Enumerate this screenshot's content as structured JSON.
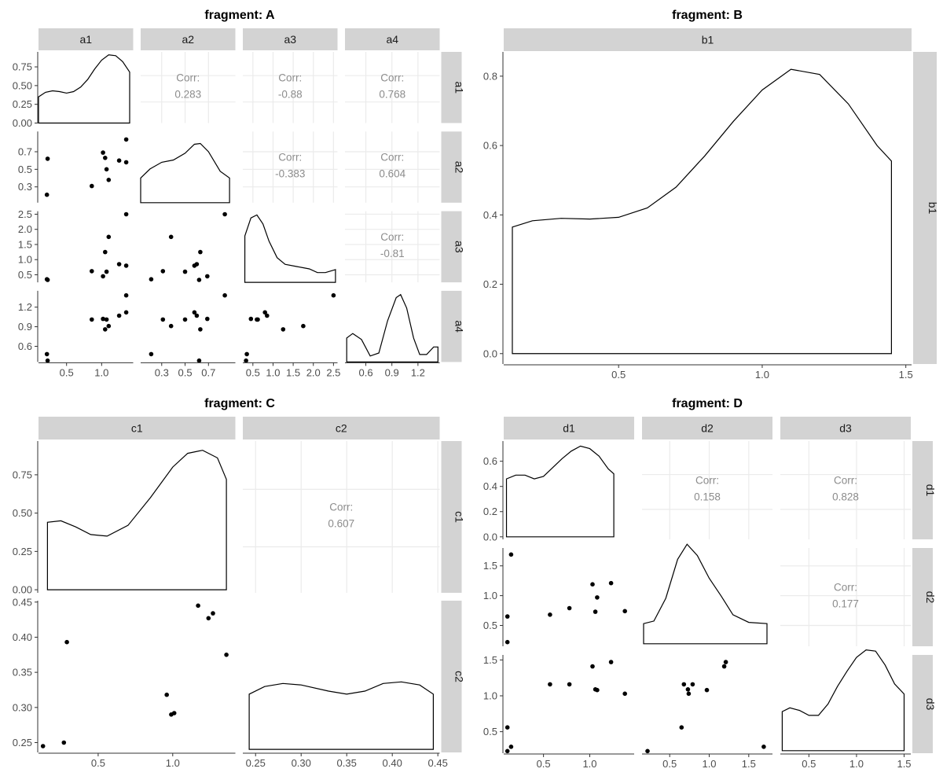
{
  "chart_data": [
    {
      "type": "scatter-matrix",
      "title": "fragment: A",
      "variables": [
        "a1",
        "a2",
        "a3",
        "a4"
      ],
      "ranges": {
        "a1": [
          0.1,
          1.45
        ],
        "a2": [
          0.12,
          0.93
        ],
        "a3": [
          0.25,
          2.6
        ],
        "a4": [
          0.36,
          1.45
        ]
      },
      "ticks": {
        "a1": [
          0.5,
          1.0
        ],
        "a2": [
          0.3,
          0.5,
          0.7
        ],
        "a3": [
          0.5,
          1.0,
          1.5,
          2.0,
          2.5
        ],
        "a4": [
          0.6,
          0.9,
          1.2
        ]
      },
      "tick_labels": {
        "a1": [
          "0.5",
          "1.0"
        ],
        "a2": [
          "0.3",
          "0.5",
          "0.7"
        ],
        "a3": [
          "0.5",
          "1.0",
          "1.5",
          "2.0",
          "2.5"
        ],
        "a4": [
          "0.6",
          "0.9",
          "1.2"
        ]
      },
      "density_ylim": [
        0,
        0.95
      ],
      "density_ticks": [
        0,
        0.25,
        0.5,
        0.75
      ],
      "density_tick_labels": [
        "0.00",
        "0.25",
        "0.50",
        "0.75"
      ],
      "density_points": {
        "a1": [
          [
            0.1,
            0.35
          ],
          [
            0.2,
            0.41
          ],
          [
            0.3,
            0.43
          ],
          [
            0.4,
            0.42
          ],
          [
            0.5,
            0.4
          ],
          [
            0.6,
            0.42
          ],
          [
            0.7,
            0.48
          ],
          [
            0.8,
            0.58
          ],
          [
            0.9,
            0.72
          ],
          [
            1.0,
            0.84
          ],
          [
            1.1,
            0.91
          ],
          [
            1.2,
            0.9
          ],
          [
            1.3,
            0.82
          ],
          [
            1.4,
            0.68
          ]
        ],
        "a2": [
          [
            0.12,
            0.33
          ],
          [
            0.2,
            0.45
          ],
          [
            0.3,
            0.54
          ],
          [
            0.4,
            0.57
          ],
          [
            0.5,
            0.66
          ],
          [
            0.58,
            0.78
          ],
          [
            0.63,
            0.79
          ],
          [
            0.7,
            0.68
          ],
          [
            0.8,
            0.42
          ],
          [
            0.88,
            0.33
          ]
        ],
        "a3": [
          [
            0.3,
            0.62
          ],
          [
            0.45,
            0.86
          ],
          [
            0.6,
            0.9
          ],
          [
            0.75,
            0.78
          ],
          [
            0.9,
            0.55
          ],
          [
            1.1,
            0.33
          ],
          [
            1.3,
            0.24
          ],
          [
            1.6,
            0.21
          ],
          [
            1.9,
            0.18
          ],
          [
            2.1,
            0.13
          ],
          [
            2.3,
            0.13
          ],
          [
            2.55,
            0.17
          ]
        ],
        "a4": [
          [
            0.38,
            0.32
          ],
          [
            0.45,
            0.38
          ],
          [
            0.55,
            0.3
          ],
          [
            0.65,
            0.08
          ],
          [
            0.75,
            0.12
          ],
          [
            0.85,
            0.55
          ],
          [
            0.95,
            0.86
          ],
          [
            1.0,
            0.9
          ],
          [
            1.07,
            0.72
          ],
          [
            1.15,
            0.32
          ],
          [
            1.22,
            0.1
          ],
          [
            1.3,
            0.1
          ],
          [
            1.38,
            0.2
          ],
          [
            1.43,
            0.2
          ]
        ]
      },
      "scatter": {
        "a1": [
          1.35,
          0.22,
          0.86,
          1.02,
          1.07,
          0.23,
          1.1,
          1.25,
          1.05,
          1.35
        ],
        "a2": [
          0.58,
          0.21,
          0.31,
          0.69,
          0.5,
          0.62,
          0.38,
          0.6,
          0.63,
          0.84
        ],
        "a3": [
          0.8,
          0.35,
          0.62,
          0.45,
          0.6,
          0.33,
          1.75,
          0.85,
          1.25,
          2.5
        ],
        "a4": [
          1.12,
          0.48,
          1.01,
          1.02,
          1.01,
          0.38,
          0.91,
          1.07,
          0.86,
          1.38
        ]
      },
      "correlations": [
        {
          "row": "a1",
          "col": "a2",
          "label": "Corr:",
          "value": "0.283"
        },
        {
          "row": "a1",
          "col": "a3",
          "label": "Corr:",
          "value": "-0.88"
        },
        {
          "row": "a1",
          "col": "a4",
          "label": "Corr:",
          "value": "0.768"
        },
        {
          "row": "a2",
          "col": "a3",
          "label": "Corr:",
          "value": "-0.383"
        },
        {
          "row": "a2",
          "col": "a4",
          "label": "Corr:",
          "value": "0.604"
        },
        {
          "row": "a3",
          "col": "a4",
          "label": "Corr:",
          "value": "-0.81"
        }
      ]
    },
    {
      "type": "density",
      "title": "fragment: B",
      "variables": [
        "b1"
      ],
      "xlim": [
        0.1,
        1.52
      ],
      "ylim": [
        -0.03,
        0.87
      ],
      "xticks": [
        0.5,
        1.0,
        1.5
      ],
      "xtick_labels": [
        "0.5",
        "1.0",
        "1.5"
      ],
      "yticks": [
        0.0,
        0.2,
        0.4,
        0.6,
        0.8
      ],
      "ytick_labels": [
        "0.0",
        "0.2",
        "0.4",
        "0.6",
        "0.8"
      ],
      "density_points": [
        [
          0.13,
          0.365
        ],
        [
          0.2,
          0.383
        ],
        [
          0.3,
          0.39
        ],
        [
          0.4,
          0.388
        ],
        [
          0.5,
          0.393
        ],
        [
          0.6,
          0.42
        ],
        [
          0.7,
          0.48
        ],
        [
          0.8,
          0.57
        ],
        [
          0.9,
          0.67
        ],
        [
          1.0,
          0.76
        ],
        [
          1.1,
          0.82
        ],
        [
          1.2,
          0.805
        ],
        [
          1.3,
          0.72
        ],
        [
          1.4,
          0.6
        ],
        [
          1.45,
          0.555
        ]
      ]
    },
    {
      "type": "scatter-matrix",
      "title": "fragment: C",
      "variables": [
        "c1",
        "c2"
      ],
      "ranges": {
        "c1": [
          0.1,
          1.42
        ],
        "c2": [
          0.236,
          0.452
        ]
      },
      "ticks": {
        "c1": [
          0.5,
          1.0
        ],
        "c2": [
          0.25,
          0.3,
          0.35,
          0.4,
          0.45
        ]
      },
      "tick_labels": {
        "c1": [
          "0.5",
          "1.0"
        ],
        "c2": [
          "0.25",
          "0.30",
          "0.35",
          "0.40",
          "0.45"
        ]
      },
      "density_ylim": [
        -0.02,
        0.97
      ],
      "density_ticks": [
        0,
        0.25,
        0.5,
        0.75
      ],
      "density_tick_labels": [
        "0.00",
        "0.25",
        "0.50",
        "0.75"
      ],
      "density_points": {
        "c1": [
          [
            0.16,
            0.44
          ],
          [
            0.25,
            0.45
          ],
          [
            0.35,
            0.41
          ],
          [
            0.45,
            0.36
          ],
          [
            0.56,
            0.35
          ],
          [
            0.7,
            0.42
          ],
          [
            0.85,
            0.6
          ],
          [
            1.0,
            0.8
          ],
          [
            1.1,
            0.89
          ],
          [
            1.2,
            0.91
          ],
          [
            1.3,
            0.86
          ],
          [
            1.36,
            0.72
          ]
        ],
        "c2": [
          [
            0.243,
            0.36
          ],
          [
            0.26,
            0.41
          ],
          [
            0.28,
            0.43
          ],
          [
            0.3,
            0.42
          ],
          [
            0.33,
            0.38
          ],
          [
            0.35,
            0.36
          ],
          [
            0.37,
            0.38
          ],
          [
            0.39,
            0.43
          ],
          [
            0.41,
            0.44
          ],
          [
            0.43,
            0.42
          ],
          [
            0.445,
            0.36
          ]
        ]
      },
      "scatter": {
        "c1": [
          0.13,
          0.27,
          0.29,
          0.96,
          0.99,
          1.01,
          1.17,
          1.24,
          1.27,
          1.36
        ],
        "c2": [
          0.245,
          0.25,
          0.393,
          0.318,
          0.29,
          0.292,
          0.445,
          0.427,
          0.434,
          0.375
        ]
      },
      "correlations": [
        {
          "row": "c1",
          "col": "c2",
          "label": "Corr:",
          "value": "0.607"
        }
      ]
    },
    {
      "type": "scatter-matrix",
      "title": "fragment: D",
      "variables": [
        "d1",
        "d2",
        "d3"
      ],
      "ranges": {
        "d1": [
          0.07,
          1.48
        ],
        "d2": [
          0.15,
          1.8
        ],
        "d3": [
          0.2,
          1.57
        ]
      },
      "ticks": {
        "d1": [
          0.5,
          1.0
        ],
        "d2": [
          0.5,
          1.0,
          1.5
        ],
        "d3": [
          0.5,
          1.0,
          1.5
        ]
      },
      "tick_labels": {
        "d1": [
          "0.5",
          "1.0"
        ],
        "d2": [
          "0.5",
          "1.0",
          "1.5"
        ],
        "d3": [
          "0.5",
          "1.0",
          "1.5"
        ]
      },
      "density_ylim": [
        -0.02,
        0.76
      ],
      "density_ticks": [
        0,
        0.2,
        0.4,
        0.6
      ],
      "density_tick_labels": [
        "0.0",
        "0.2",
        "0.4",
        "0.6"
      ],
      "density_points": {
        "d1": [
          [
            0.1,
            0.46
          ],
          [
            0.2,
            0.49
          ],
          [
            0.3,
            0.49
          ],
          [
            0.4,
            0.46
          ],
          [
            0.5,
            0.48
          ],
          [
            0.6,
            0.55
          ],
          [
            0.7,
            0.62
          ],
          [
            0.8,
            0.68
          ],
          [
            0.9,
            0.72
          ],
          [
            1.0,
            0.7
          ],
          [
            1.1,
            0.64
          ],
          [
            1.2,
            0.54
          ],
          [
            1.26,
            0.5
          ]
        ],
        "d2": [
          [
            0.17,
            0.16
          ],
          [
            0.3,
            0.18
          ],
          [
            0.45,
            0.36
          ],
          [
            0.6,
            0.67
          ],
          [
            0.72,
            0.79
          ],
          [
            0.85,
            0.7
          ],
          [
            1.0,
            0.52
          ],
          [
            1.15,
            0.38
          ],
          [
            1.3,
            0.23
          ],
          [
            1.5,
            0.17
          ],
          [
            1.73,
            0.16
          ]
        ],
        "d3": [
          [
            0.22,
            0.31
          ],
          [
            0.3,
            0.34
          ],
          [
            0.4,
            0.32
          ],
          [
            0.5,
            0.28
          ],
          [
            0.6,
            0.28
          ],
          [
            0.7,
            0.37
          ],
          [
            0.8,
            0.51
          ],
          [
            0.9,
            0.63
          ],
          [
            1.0,
            0.74
          ],
          [
            1.1,
            0.8
          ],
          [
            1.2,
            0.79
          ],
          [
            1.3,
            0.68
          ],
          [
            1.4,
            0.53
          ],
          [
            1.5,
            0.45
          ]
        ]
      },
      "scatter": {
        "d1": [
          0.11,
          0.11,
          0.15,
          0.57,
          0.78,
          1.03,
          1.06,
          1.08,
          1.23,
          1.38
        ],
        "d2": [
          0.65,
          0.22,
          1.69,
          0.68,
          0.79,
          1.19,
          0.73,
          0.97,
          1.21,
          0.74
        ],
        "d3": [
          0.56,
          0.23,
          0.29,
          1.16,
          1.16,
          1.41,
          1.09,
          1.08,
          1.47,
          1.03
        ]
      },
      "correlations": [
        {
          "row": "d1",
          "col": "d2",
          "label": "Corr:",
          "value": "0.158"
        },
        {
          "row": "d1",
          "col": "d3",
          "label": "Corr:",
          "value": "0.828"
        },
        {
          "row": "d2",
          "col": "d3",
          "label": "Corr:",
          "value": "0.177"
        }
      ]
    }
  ]
}
